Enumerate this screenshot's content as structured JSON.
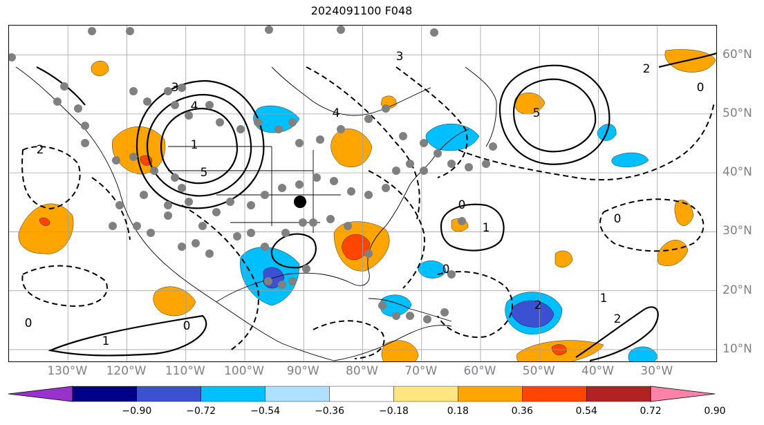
{
  "title": "2024091100 F048",
  "lon_axis": {
    "ticks": [
      "130°W",
      "120°W",
      "110°W",
      "100°W",
      "90°W",
      "80°W",
      "70°W",
      "60°W",
      "50°W",
      "40°W",
      "30°W"
    ],
    "values": [
      -130,
      -120,
      -110,
      -100,
      -90,
      -80,
      -70,
      -60,
      -50,
      -40,
      -30
    ],
    "range": [
      -140,
      -20
    ]
  },
  "lat_axis": {
    "ticks": [
      "10°N",
      "20°N",
      "30°N",
      "40°N",
      "50°N",
      "60°N"
    ],
    "values": [
      10,
      20,
      30,
      40,
      50,
      60
    ],
    "range": [
      8,
      65
    ]
  },
  "colorbar": {
    "ticks": [
      "−0.90",
      "−0.72",
      "−0.54",
      "−0.36",
      "−0.18",
      "0.18",
      "0.36",
      "0.54",
      "0.72",
      "0.90"
    ],
    "colors": [
      "#9932cc",
      "#00008b",
      "#3c50d2",
      "#00bfff",
      "#b0e0ff",
      "#ffffff",
      "#ffe680",
      "#ffa500",
      "#ff4500",
      "#b22222",
      "#ff82ab"
    ],
    "extend": "both"
  },
  "contour_labels": [
    "0",
    "1",
    "2",
    "3",
    "4",
    "5"
  ],
  "colors": {
    "positive_fill": "#ffa500",
    "strong_positive_fill": "#ff4500",
    "negative_fill": "#00bfff",
    "strong_negative_fill": "#3c50d2",
    "coastline": "#000000",
    "grid": "#a0a0a0",
    "marker": "#808080",
    "storm_marker": "#000000"
  }
}
